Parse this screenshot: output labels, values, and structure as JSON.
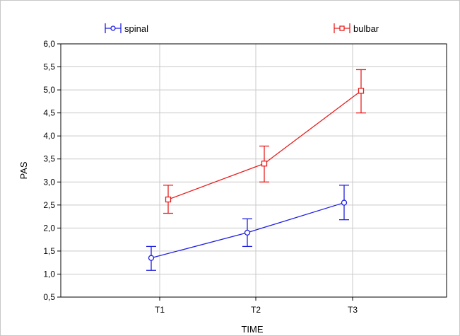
{
  "chart_data": {
    "type": "line",
    "xlabel": "TIME",
    "ylabel": "PAS",
    "categories": [
      "T1",
      "T2",
      "T3"
    ],
    "ylim": [
      0.5,
      6.0
    ],
    "yticks": [
      "0,5",
      "1,0",
      "1,5",
      "2,0",
      "2,5",
      "3,0",
      "3,5",
      "4,0",
      "4,5",
      "5,0",
      "5,5",
      "6,0"
    ],
    "grid": true,
    "legend_position": "top",
    "series": [
      {
        "name": "spinal",
        "color": "#1f1fe0",
        "marker": "circle",
        "values": [
          1.35,
          1.9,
          2.55
        ],
        "err_low": [
          1.08,
          1.6,
          2.18
        ],
        "err_high": [
          1.6,
          2.2,
          2.93
        ]
      },
      {
        "name": "bulbar",
        "color": "#e81f1f",
        "marker": "square",
        "values": [
          2.62,
          3.4,
          4.98
        ],
        "err_low": [
          2.32,
          3.0,
          4.5
        ],
        "err_high": [
          2.93,
          3.78,
          5.44
        ]
      }
    ]
  }
}
